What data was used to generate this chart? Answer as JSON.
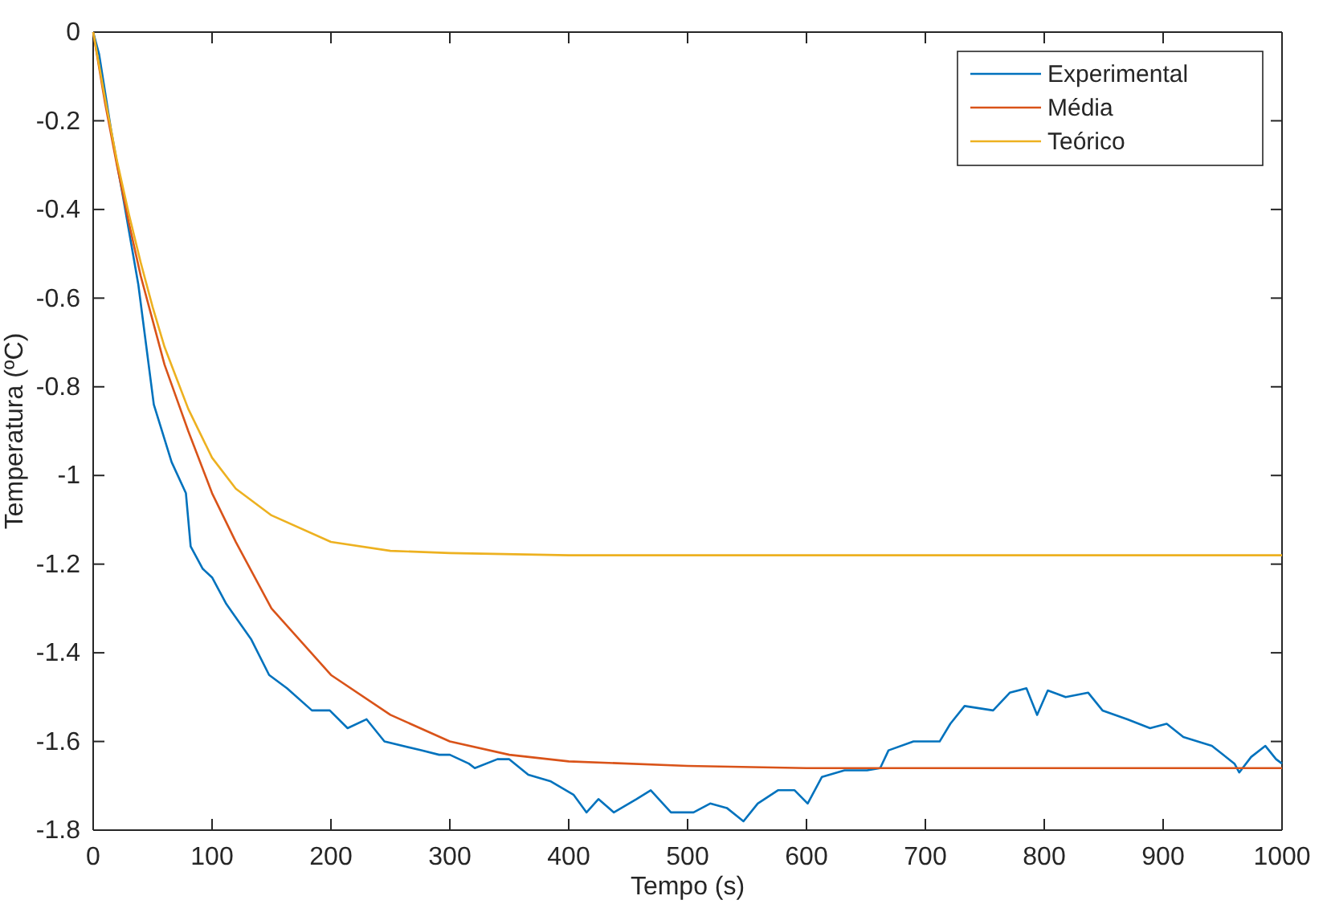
{
  "chart_data": {
    "type": "line",
    "xlabel": "Tempo (s)",
    "ylabel": "Temperatura (ºC)",
    "xlim": [
      0,
      1000
    ],
    "xticks": [
      0,
      100,
      200,
      300,
      400,
      500,
      600,
      700,
      800,
      900,
      1000
    ],
    "ylim": [
      -1.8,
      0
    ],
    "yticks": [
      -1.8,
      -1.6,
      -1.4,
      -1.2,
      -1,
      -0.8,
      -0.6,
      -0.4,
      -0.2,
      0
    ],
    "grid": false,
    "legend": "top right",
    "marker": "none",
    "line_style": "solid",
    "series": [
      {
        "name": "Experimental",
        "color": "#0072bd",
        "x": [
          0,
          5,
          15,
          25,
          38,
          51,
          66,
          78,
          82,
          92,
          100,
          112,
          133,
          148,
          163,
          184,
          199,
          214,
          230,
          245,
          276,
          291,
          300,
          316,
          321,
          340,
          350,
          366,
          385,
          404,
          415,
          425,
          438,
          457,
          469,
          486,
          505,
          519,
          533,
          547,
          559,
          576,
          590,
          601,
          613,
          632,
          651,
          662,
          669,
          690,
          712,
          721,
          733,
          757,
          771,
          785,
          794,
          803,
          818,
          837,
          849,
          870,
          889,
          903,
          917,
          941,
          960,
          964,
          974,
          986,
          995,
          1000
        ],
        "values": [
          0,
          -0.05,
          -0.22,
          -0.37,
          -0.57,
          -0.84,
          -0.97,
          -1.04,
          -1.16,
          -1.21,
          -1.23,
          -1.29,
          -1.37,
          -1.45,
          -1.48,
          -1.53,
          -1.53,
          -1.57,
          -1.55,
          -1.6,
          -1.62,
          -1.63,
          -1.63,
          -1.65,
          -1.66,
          -1.64,
          -1.64,
          -1.675,
          -1.69,
          -1.72,
          -1.76,
          -1.73,
          -1.76,
          -1.73,
          -1.71,
          -1.76,
          -1.76,
          -1.74,
          -1.75,
          -1.78,
          -1.74,
          -1.71,
          -1.71,
          -1.74,
          -1.68,
          -1.665,
          -1.665,
          -1.66,
          -1.62,
          -1.6,
          -1.6,
          -1.56,
          -1.52,
          -1.53,
          -1.49,
          -1.48,
          -1.54,
          -1.485,
          -1.5,
          -1.49,
          -1.53,
          -1.55,
          -1.57,
          -1.56,
          -1.59,
          -1.61,
          -1.65,
          -1.67,
          -1.635,
          -1.61,
          -1.64,
          -1.65
        ]
      },
      {
        "name": "Média",
        "color": "#d95319",
        "x": [
          0,
          10,
          20,
          30,
          40,
          50,
          60,
          80,
          100,
          120,
          150,
          200,
          250,
          300,
          350,
          400,
          500,
          600,
          1000
        ],
        "values": [
          0,
          -0.16,
          -0.3,
          -0.43,
          -0.55,
          -0.65,
          -0.75,
          -0.9,
          -1.04,
          -1.15,
          -1.3,
          -1.45,
          -1.54,
          -1.6,
          -1.63,
          -1.645,
          -1.655,
          -1.66,
          -1.66
        ]
      },
      {
        "name": "Teórico",
        "color": "#edb120",
        "x": [
          0,
          10,
          20,
          30,
          40,
          50,
          60,
          70,
          80,
          100,
          120,
          150,
          200,
          250,
          300,
          400,
          1000
        ],
        "values": [
          0,
          -0.15,
          -0.29,
          -0.41,
          -0.52,
          -0.62,
          -0.71,
          -0.78,
          -0.85,
          -0.96,
          -1.03,
          -1.09,
          -1.15,
          -1.17,
          -1.175,
          -1.18,
          -1.18
        ]
      }
    ]
  }
}
